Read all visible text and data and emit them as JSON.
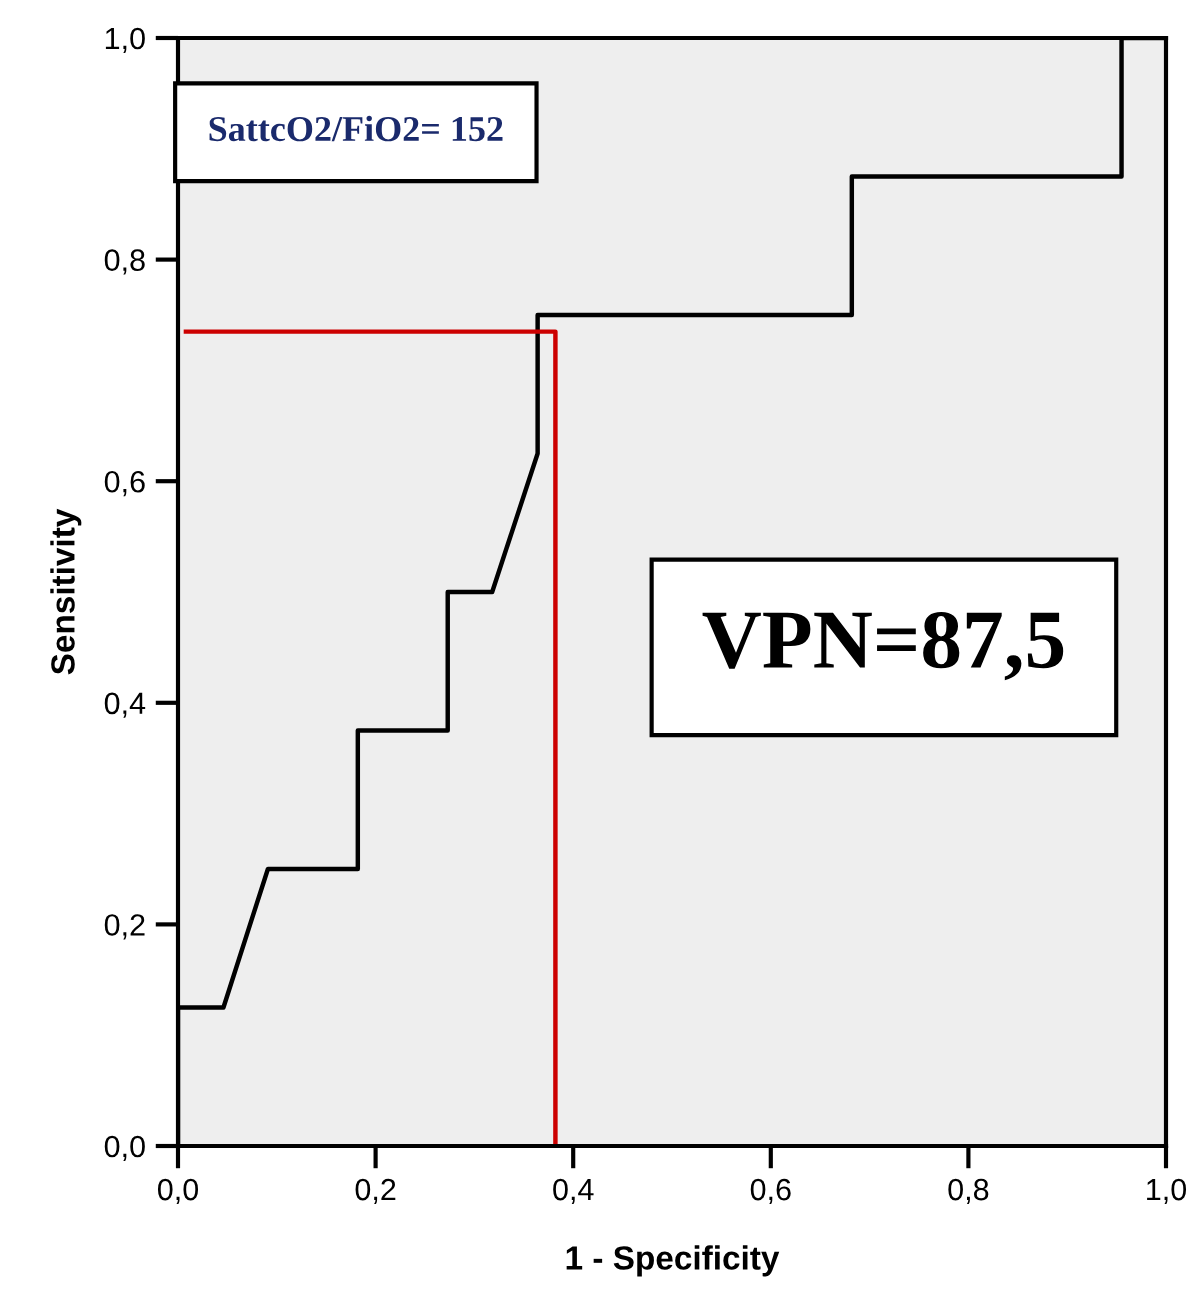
{
  "chart_data": {
    "type": "line",
    "xlabel": "1 - Specificity",
    "ylabel": "Sensitivity",
    "series": [
      {
        "color": "#000000",
        "x": [
          0,
          0,
          0.046,
          0.091,
          0.182,
          0.182,
          0.273,
          0.273,
          0.318,
          0.364,
          0.364,
          0.682,
          0.682,
          0.955,
          0.955,
          1
        ],
        "values": [
          0,
          0.125,
          0.125,
          0.25,
          0.25,
          0.375,
          0.375,
          0.5,
          0.5,
          0.625,
          0.75,
          0.75,
          0.875,
          0.875,
          1,
          1
        ]
      },
      {
        "color": "#cc0000",
        "x": [
          0.008,
          0.382,
          0.382
        ],
        "values": [
          0.735,
          0.735,
          0
        ]
      }
    ],
    "xlim": [
      0,
      1
    ],
    "ylim": [
      0,
      1
    ],
    "xticks": [
      {
        "value": 0,
        "label": "0,0"
      },
      {
        "value": 0.2,
        "label": "0,2"
      },
      {
        "value": 0.4,
        "label": "0,4"
      },
      {
        "value": 0.6,
        "label": "0,6"
      },
      {
        "value": 0.8,
        "label": "0,8"
      },
      {
        "value": 1,
        "label": "1,0"
      }
    ],
    "yticks": [
      {
        "value": 0,
        "label": "0,0"
      },
      {
        "value": 0.2,
        "label": "0,2"
      },
      {
        "value": 0.4,
        "label": "0,4"
      },
      {
        "value": 0.6,
        "label": "0,6"
      },
      {
        "value": 0.8,
        "label": "0,8"
      },
      {
        "value": 1,
        "label": "1,0"
      }
    ],
    "grid": false,
    "marker": "none",
    "line_style": "solid",
    "annotations": [
      "SattcO2/FiO2= 152",
      "VPN=87,5"
    ]
  }
}
